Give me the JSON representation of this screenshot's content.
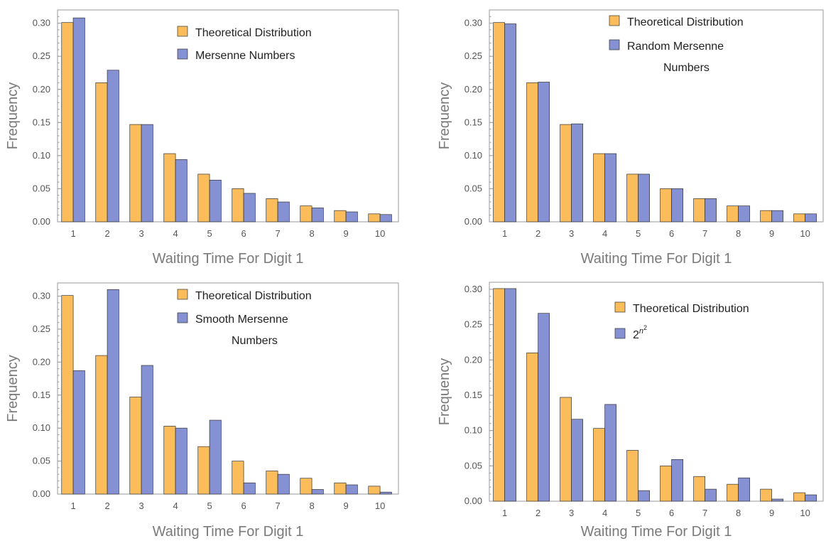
{
  "colors": {
    "theoretical": "#fbbd5b",
    "comparison": "#8691d3",
    "bar_stroke": "#333333",
    "frame": "#9a9a9a"
  },
  "chart_data": [
    {
      "type": "bar",
      "categories": [
        "1",
        "2",
        "3",
        "4",
        "5",
        "6",
        "7",
        "8",
        "9",
        "10"
      ],
      "series": [
        {
          "name": "Theoretical Distribution",
          "values": [
            0.301,
            0.21,
            0.147,
            0.103,
            0.072,
            0.05,
            0.035,
            0.024,
            0.017,
            0.012
          ]
        },
        {
          "name": "Mersenne Numbers",
          "values": [
            0.308,
            0.229,
            0.147,
            0.094,
            0.063,
            0.043,
            0.03,
            0.021,
            0.015,
            0.011
          ]
        }
      ],
      "legend_lines": [
        [
          "Theoretical  Distribution"
        ],
        [
          "Mersenne  Numbers"
        ]
      ],
      "xlabel": "Waiting  Time  For  Digit  1",
      "ylabel": "Frequency",
      "ylim": [
        0,
        0.32
      ],
      "yticks": [
        "0.00",
        "0.05",
        "0.10",
        "0.15",
        "0.20",
        "0.25",
        "0.30"
      ],
      "legend_position": "top-right"
    },
    {
      "type": "bar",
      "categories": [
        "1",
        "2",
        "3",
        "4",
        "5",
        "6",
        "7",
        "8",
        "9",
        "10"
      ],
      "series": [
        {
          "name": "Theoretical Distribution",
          "values": [
            0.301,
            0.21,
            0.147,
            0.103,
            0.072,
            0.05,
            0.035,
            0.024,
            0.017,
            0.012
          ]
        },
        {
          "name": "Random Mersenne Numbers",
          "values": [
            0.299,
            0.211,
            0.148,
            0.103,
            0.072,
            0.05,
            0.035,
            0.024,
            0.017,
            0.012
          ]
        }
      ],
      "legend_lines": [
        [
          "Theoretical  Distribution"
        ],
        [
          "Random  Mersenne",
          "Numbers"
        ]
      ],
      "xlabel": "Waiting  Time  For  Digit  1",
      "ylabel": "Frequency",
      "ylim": [
        0,
        0.32
      ],
      "yticks": [
        "0.00",
        "0.05",
        "0.10",
        "0.15",
        "0.20",
        "0.25",
        "0.30"
      ],
      "legend_position": "top-right"
    },
    {
      "type": "bar",
      "categories": [
        "1",
        "2",
        "3",
        "4",
        "5",
        "6",
        "7",
        "8",
        "9",
        "10"
      ],
      "series": [
        {
          "name": "Theoretical Distribution",
          "values": [
            0.301,
            0.21,
            0.147,
            0.103,
            0.072,
            0.05,
            0.035,
            0.024,
            0.017,
            0.012
          ]
        },
        {
          "name": "Smooth Mersenne Numbers",
          "values": [
            0.187,
            0.31,
            0.195,
            0.1,
            0.112,
            0.017,
            0.03,
            0.007,
            0.014,
            0.003
          ]
        }
      ],
      "legend_lines": [
        [
          "Theoretical  Distribution"
        ],
        [
          "Smooth  Mersenne",
          "Numbers"
        ]
      ],
      "xlabel": "Waiting  Time  For  Digit  1",
      "ylabel": "Frequency",
      "ylim": [
        0,
        0.32
      ],
      "yticks": [
        "0.00",
        "0.05",
        "0.10",
        "0.15",
        "0.20",
        "0.25",
        "0.30"
      ],
      "legend_position": "top-right"
    },
    {
      "type": "bar",
      "categories": [
        "1",
        "2",
        "3",
        "4",
        "5",
        "6",
        "7",
        "8",
        "9",
        "10"
      ],
      "series": [
        {
          "name": "Theoretical Distribution",
          "values": [
            0.301,
            0.21,
            0.147,
            0.103,
            0.072,
            0.05,
            0.035,
            0.024,
            0.017,
            0.012
          ]
        },
        {
          "name": "2^(n^2)",
          "values": [
            0.301,
            0.266,
            0.116,
            0.137,
            0.015,
            0.059,
            0.017,
            0.033,
            0.003,
            0.009
          ]
        }
      ],
      "legend_lines": [
        [
          "Theoretical Distribution"
        ],
        [
          "2^n^2"
        ]
      ],
      "xlabel": "Waiting Time For Digit 1",
      "ylabel": "Frequency",
      "ylim": [
        0,
        0.31
      ],
      "yticks": [
        "0.00",
        "0.05",
        "0.10",
        "0.15",
        "0.20",
        "0.25",
        "0.30"
      ],
      "legend_position": "top-right"
    }
  ]
}
